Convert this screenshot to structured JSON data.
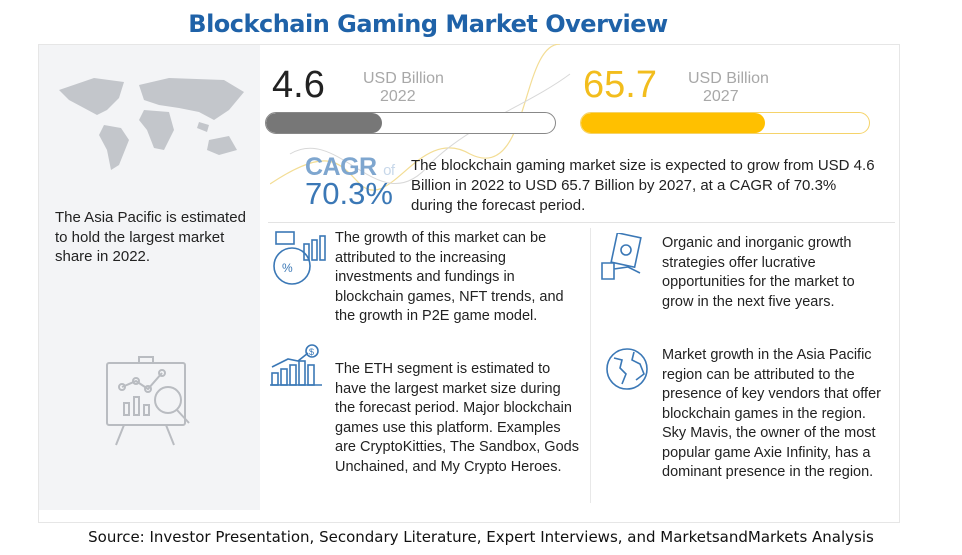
{
  "title": "Blockchain Gaming Market Overview",
  "left_panel": {
    "text": "The Asia Pacific is estimated to hold the largest market share in 2022."
  },
  "market_2022": {
    "value": "4.6",
    "unit": "USD Billion",
    "year": "2022",
    "bar_fill_pct": 40,
    "color": "#777777"
  },
  "market_2027": {
    "value": "65.7",
    "unit": "USD Billion",
    "year": "2027",
    "bar_fill_pct": 64,
    "color": "#ffc000"
  },
  "cagr": {
    "label": "CAGR",
    "of": "of",
    "value": "70.3%",
    "description": "The blockchain gaming market size is expected to grow from USD 4.6 Billion in 2022 to USD 65.7 Billion by 2027, at a CAGR of 70.3% during the forecast period."
  },
  "insights": [
    {
      "icon": "growth-analytics-icon",
      "text": "The growth of this market can be attributed to the increasing investments and fundings in blockchain games, NFT trends, and the growth in P2E game model."
    },
    {
      "icon": "money-hand-icon",
      "text": "Organic and inorganic growth strategies offer lucrative opportunities for the market to grow in the next five years."
    },
    {
      "icon": "dollar-bar-chart-icon",
      "text": "The ETH segment is estimated to have the largest market size during the forecast period. Major blockchain games use this platform. Examples are CryptoKitties, The Sandbox, Gods Unchained, and My Crypto Heroes."
    },
    {
      "icon": "globe-icon",
      "text": "Market growth in the Asia Pacific region can be attributed to the presence of key vendors that offer blockchain games in the region. Sky Mavis, the owner of the most popular game Axie Infinity, has a dominant presence in the region."
    }
  ],
  "source": "Source: Investor Presentation, Secondary Literature, Expert Interviews, and MarketsandMarkets Analysis"
}
